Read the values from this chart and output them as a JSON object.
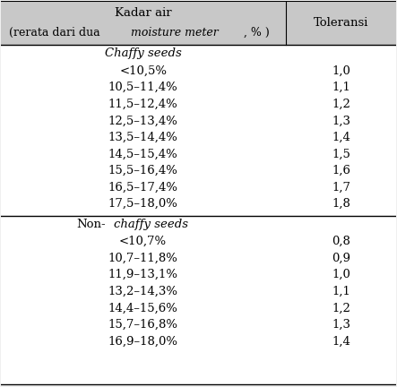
{
  "header_col1_line1": "Kadar air",
  "header_col1_pre_italic": "(rerata dari dua ",
  "header_col1_italic": "moisture meter",
  "header_col1_post_italic": ", % )",
  "header_col2": "Toleransi",
  "section1_title": "Chaffy seeds",
  "section2_title_normal": "Non-",
  "section2_title_italic": "chaffy seeds",
  "section1_rows": [
    [
      "<10,5%",
      "1,0"
    ],
    [
      "10,5–11,4%",
      "1,1"
    ],
    [
      "11,5–12,4%",
      "1,2"
    ],
    [
      "12,5–13,4%",
      "1,3"
    ],
    [
      "13,5–14,4%",
      "1,4"
    ],
    [
      "14,5–15,4%",
      "1,5"
    ],
    [
      "15,5–16,4%",
      "1,6"
    ],
    [
      "16,5–17,4%",
      "1,7"
    ],
    [
      "17,5–18,0%",
      "1,8"
    ]
  ],
  "section2_rows": [
    [
      "<10,7%",
      "0,8"
    ],
    [
      "10,7–11,8%",
      "0,9"
    ],
    [
      "11,9–13,1%",
      "1,0"
    ],
    [
      "13,2–14,3%",
      "1,1"
    ],
    [
      "14,4–15,6%",
      "1,2"
    ],
    [
      "15,7–16,8%",
      "1,3"
    ],
    [
      "16,9–18,0%",
      "1,4"
    ]
  ],
  "header_bg_color": "#c8c8c8",
  "content_bg_color": "#ffffff",
  "fig_bg_color": "#f0f0f0",
  "text_color": "#000000",
  "figsize": [
    4.43,
    4.32
  ],
  "dpi": 100,
  "col_split": 0.72,
  "header_fs": 9.5,
  "row_fs": 9.5
}
